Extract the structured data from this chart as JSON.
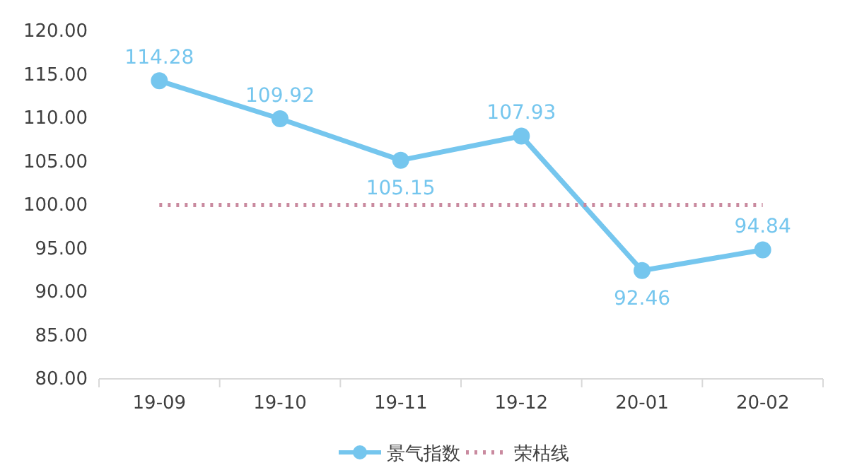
{
  "chart_data": {
    "type": "line",
    "categories": [
      "19-09",
      "19-10",
      "19-11",
      "19-12",
      "20-01",
      "20-02"
    ],
    "series": [
      {
        "name": "景气指数",
        "color": "#75c6ee",
        "values": [
          114.28,
          109.92,
          105.15,
          107.93,
          92.46,
          94.84
        ],
        "value_labels": [
          "114.28",
          "109.92",
          "105.15",
          "107.93",
          "92.46",
          "94.84"
        ],
        "marker": "circle",
        "line_style": "solid"
      },
      {
        "name": "荣枯线",
        "color": "#c98a9f",
        "values": [
          100,
          100,
          100,
          100,
          100,
          100
        ],
        "marker": "none",
        "line_style": "dotted"
      }
    ],
    "ylim": [
      80,
      120
    ],
    "yticks": [
      {
        "value": 80,
        "label": "80.00"
      },
      {
        "value": 85,
        "label": "85.00"
      },
      {
        "value": 90,
        "label": "90.00"
      },
      {
        "value": 95,
        "label": "95.00"
      },
      {
        "value": 100,
        "label": "100.00"
      },
      {
        "value": 105,
        "label": "105.00"
      },
      {
        "value": 110,
        "label": "110.00"
      },
      {
        "value": 115,
        "label": "115.00"
      },
      {
        "value": 120,
        "label": "120.00"
      }
    ],
    "grid": false,
    "legend": "bottom"
  }
}
